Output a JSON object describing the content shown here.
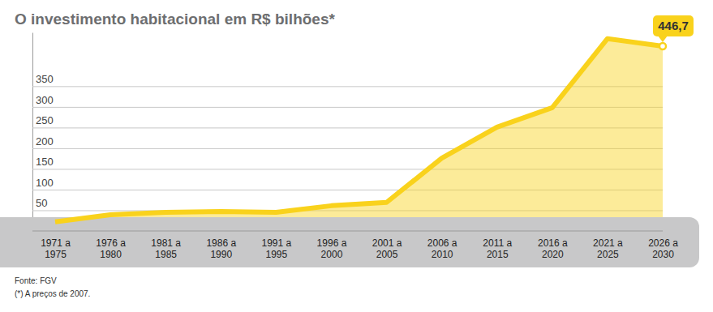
{
  "chart_data": {
    "type": "area",
    "title": "O investimento habitacional em R$ bilhões*",
    "categories": [
      "1971 a 1975",
      "1976 a 1980",
      "1981 a 1985",
      "1986 a 1990",
      "1991 a 1995",
      "1996 a 2000",
      "2001 a 2005",
      "2006 a 2010",
      "2011 a 2015",
      "2016 a 2020",
      "2021 a 2025",
      "2026 a 2030"
    ],
    "values": [
      22,
      39,
      45,
      47,
      45,
      61,
      69,
      176,
      251,
      298,
      465,
      446.7
    ],
    "value_labels": [
      null,
      null,
      null,
      null,
      null,
      null,
      null,
      null,
      null,
      null,
      null,
      "446,7"
    ],
    "color": "#f9d21c",
    "ylim": [
      0,
      480
    ],
    "yticks": [
      50,
      100,
      150,
      200,
      250,
      300,
      350
    ],
    "grid": true,
    "source": "Fonte: FGV",
    "note": "(*) A preços de 2007."
  }
}
